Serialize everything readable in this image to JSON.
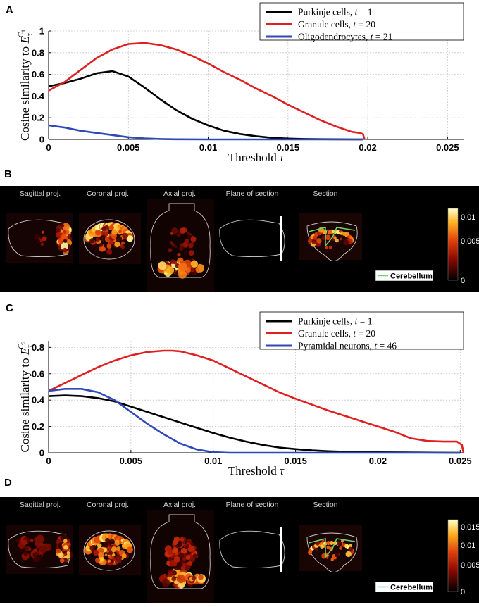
{
  "chart_data": [
    {
      "panel": "A",
      "type": "line",
      "xlabel": "Threshold τ",
      "ylabel": "Cosine similarity to E_τ^{C1}",
      "ylabel_main": "Cosine similarity to ",
      "ylabel_sym": "E",
      "ylabel_sup": "C",
      "ylabel_supsub": "1",
      "ylabel_sub": "τ",
      "xlim": [
        0,
        0.026
      ],
      "ylim": [
        0,
        1
      ],
      "xticks": [
        "0",
        "0.005",
        "0.01",
        "0.015",
        "0.02",
        "0.025"
      ],
      "xtick_values": [
        0,
        0.005,
        0.01,
        0.015,
        0.02,
        0.025
      ],
      "yticks": [
        "0",
        "0.2",
        "0.4",
        "0.6",
        "0.8",
        "1"
      ],
      "ytick_values": [
        0,
        0.2,
        0.4,
        0.6,
        0.8,
        1
      ],
      "grid": true,
      "legend_position": "top-right",
      "series": [
        {
          "name": "Purkinje cells, t = 1",
          "legend_main": "Purkinje cells, ",
          "legend_var": "t",
          "legend_rest": " = 1",
          "color": "#000000",
          "x": [
            0,
            0.001,
            0.002,
            0.003,
            0.004,
            0.005,
            0.006,
            0.007,
            0.008,
            0.009,
            0.01,
            0.011,
            0.012,
            0.013,
            0.014,
            0.015,
            0.016,
            0.017,
            0.018,
            0.019,
            0.0197
          ],
          "y": [
            0.49,
            0.52,
            0.56,
            0.61,
            0.63,
            0.58,
            0.48,
            0.37,
            0.27,
            0.19,
            0.13,
            0.08,
            0.05,
            0.03,
            0.015,
            0.008,
            0.004,
            0.002,
            0.001,
            0.0,
            0.0
          ]
        },
        {
          "name": "Granule cells, t = 20",
          "legend_main": "Granule cells, ",
          "legend_var": "t",
          "legend_rest": " = 20",
          "color": "#e02020",
          "x": [
            0,
            0.001,
            0.002,
            0.003,
            0.004,
            0.005,
            0.006,
            0.007,
            0.008,
            0.009,
            0.01,
            0.011,
            0.012,
            0.013,
            0.014,
            0.015,
            0.016,
            0.017,
            0.018,
            0.019,
            0.0195,
            0.0197,
            0.0198
          ],
          "y": [
            0.45,
            0.53,
            0.64,
            0.75,
            0.83,
            0.88,
            0.89,
            0.87,
            0.83,
            0.77,
            0.7,
            0.62,
            0.55,
            0.47,
            0.4,
            0.32,
            0.25,
            0.18,
            0.12,
            0.07,
            0.06,
            0.05,
            0.0
          ]
        },
        {
          "name": "Oligodendrocytes, t = 21",
          "legend_main": "Oligodendrocytes, ",
          "legend_var": "t",
          "legend_rest": " = 21",
          "color": "#2f49b8",
          "x": [
            0,
            0.001,
            0.002,
            0.003,
            0.004,
            0.005,
            0.006,
            0.007,
            0.008,
            0.01,
            0.012,
            0.015,
            0.0197
          ],
          "y": [
            0.13,
            0.11,
            0.08,
            0.06,
            0.04,
            0.02,
            0.01,
            0.004,
            0.001,
            0.0,
            0.0,
            0.0,
            0.0
          ]
        }
      ]
    },
    {
      "panel": "C",
      "type": "line",
      "xlabel": "Threshold τ",
      "ylabel": "Cosine similarity to E_τ^{C2}",
      "ylabel_main": "Cosine similarity to ",
      "ylabel_sym": "E",
      "ylabel_sup": "C",
      "ylabel_supsub": "2",
      "ylabel_sub": "τ",
      "xlim": [
        0,
        0.0252
      ],
      "ylim": [
        0,
        0.85
      ],
      "xticks": [
        "0",
        "0.005",
        "0.01",
        "0.015",
        "0.02",
        "0.025"
      ],
      "xtick_values": [
        0,
        0.005,
        0.01,
        0.015,
        0.02,
        0.025
      ],
      "yticks": [
        "0",
        "0.2",
        "0.4",
        "0.6",
        "0.8"
      ],
      "ytick_values": [
        0,
        0.2,
        0.4,
        0.6,
        0.8
      ],
      "grid": true,
      "legend_position": "top-right",
      "series": [
        {
          "name": "Purkinje cells, t = 1",
          "legend_main": "Purkinje cells, ",
          "legend_var": "t",
          "legend_rest": " = 1",
          "color": "#000000",
          "x": [
            0,
            0.001,
            0.002,
            0.003,
            0.004,
            0.005,
            0.006,
            0.007,
            0.008,
            0.009,
            0.01,
            0.011,
            0.012,
            0.013,
            0.014,
            0.015,
            0.016,
            0.017,
            0.018,
            0.02,
            0.022,
            0.025
          ],
          "y": [
            0.43,
            0.435,
            0.43,
            0.415,
            0.39,
            0.35,
            0.31,
            0.27,
            0.23,
            0.19,
            0.15,
            0.115,
            0.085,
            0.06,
            0.04,
            0.028,
            0.018,
            0.012,
            0.008,
            0.004,
            0.002,
            0.0
          ]
        },
        {
          "name": "Granule cells, t = 20",
          "legend_main": "Granule cells, ",
          "legend_var": "t",
          "legend_rest": " = 20",
          "color": "#e02020",
          "x": [
            0,
            0.001,
            0.002,
            0.003,
            0.004,
            0.005,
            0.006,
            0.007,
            0.0075,
            0.008,
            0.009,
            0.01,
            0.011,
            0.012,
            0.013,
            0.014,
            0.015,
            0.016,
            0.017,
            0.018,
            0.019,
            0.02,
            0.021,
            0.022,
            0.023,
            0.024,
            0.0248,
            0.0251,
            0.0252
          ],
          "y": [
            0.47,
            0.53,
            0.59,
            0.65,
            0.7,
            0.74,
            0.765,
            0.775,
            0.775,
            0.77,
            0.74,
            0.7,
            0.64,
            0.58,
            0.52,
            0.46,
            0.41,
            0.365,
            0.32,
            0.28,
            0.24,
            0.2,
            0.16,
            0.11,
            0.09,
            0.085,
            0.085,
            0.06,
            0.0
          ]
        },
        {
          "name": "Pyramidal neurons, t = 46",
          "legend_main": "Pyramidal neurons, ",
          "legend_var": "t",
          "legend_rest": " = 46",
          "color": "#2f49b8",
          "x": [
            0,
            0.001,
            0.002,
            0.003,
            0.004,
            0.005,
            0.006,
            0.007,
            0.008,
            0.009,
            0.01,
            0.011,
            0.012,
            0.015,
            0.02,
            0.025
          ],
          "y": [
            0.47,
            0.485,
            0.485,
            0.46,
            0.4,
            0.31,
            0.22,
            0.14,
            0.07,
            0.025,
            0.005,
            0.0,
            0.0,
            0.0,
            0.0,
            0.0
          ]
        }
      ]
    }
  ],
  "image_panels": [
    {
      "panel": "B",
      "titles": [
        "Sagittal proj.",
        "Coronal proj.",
        "Axial proj.",
        "Plane of section",
        "Section"
      ],
      "colorbar_ticks": [
        "0.01",
        "0.005",
        "0"
      ],
      "legend_label": "Cerebellum"
    },
    {
      "panel": "D",
      "titles": [
        "Sagittal proj.",
        "Coronal proj.",
        "Axial proj.",
        "Plane of section",
        "Section"
      ],
      "colorbar_ticks": [
        "0.015",
        "0.01",
        "0.005",
        "0"
      ],
      "legend_label": "Cerebellum"
    }
  ],
  "colors": {
    "hot_low": "#3a0000",
    "hot_mid": "#e04010",
    "hot_high": "#ffffa0",
    "cerebellum_line": "#6fd36f"
  }
}
